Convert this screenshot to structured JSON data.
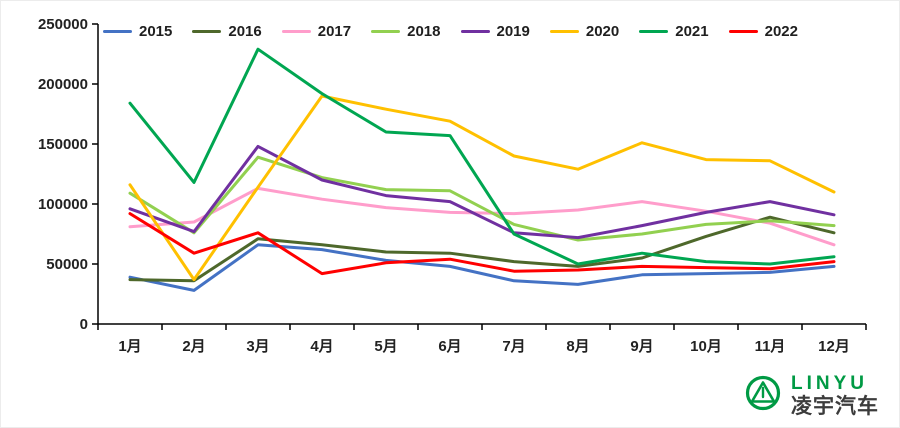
{
  "chart_data": {
    "type": "line",
    "title": "",
    "categories": [
      "1月",
      "2月",
      "3月",
      "4月",
      "5月",
      "6月",
      "7月",
      "8月",
      "9月",
      "10月",
      "11月",
      "12月"
    ],
    "y_tick_labels": [
      "0",
      "50000",
      "100000",
      "150000",
      "200000",
      "250000"
    ],
    "ylim": [
      0,
      250000
    ],
    "y_tick_interval": 50000,
    "grid": false,
    "legend_position": "top",
    "axis_color": "#000000",
    "series": [
      {
        "name": "2015",
        "color": "#4472C4",
        "values": [
          39000,
          28000,
          66000,
          62000,
          53000,
          48000,
          36000,
          33000,
          41000,
          42000,
          43000,
          48000
        ]
      },
      {
        "name": "2016",
        "color": "#4E682B",
        "values": [
          37000,
          36000,
          71000,
          66000,
          60000,
          59000,
          52000,
          48000,
          55000,
          73000,
          89000,
          76000
        ]
      },
      {
        "name": "2017",
        "color": "#FF9DCB",
        "values": [
          81000,
          85000,
          113000,
          104000,
          97000,
          93000,
          92000,
          95000,
          102000,
          94000,
          84000,
          66000
        ]
      },
      {
        "name": "2018",
        "color": "#92D050",
        "values": [
          109000,
          76000,
          139000,
          122000,
          112000,
          111000,
          83000,
          70000,
          75000,
          83000,
          86000,
          82000
        ]
      },
      {
        "name": "2019",
        "color": "#7030A0",
        "values": [
          96000,
          77000,
          148000,
          120000,
          107000,
          102000,
          76000,
          72000,
          82000,
          93000,
          102000,
          91000
        ]
      },
      {
        "name": "2020",
        "color": "#FFC000",
        "values": [
          116000,
          37000,
          114000,
          190000,
          179000,
          169000,
          140000,
          129000,
          151000,
          137000,
          136000,
          110000
        ]
      },
      {
        "name": "2021",
        "color": "#00A651",
        "values": [
          184000,
          118000,
          229000,
          192000,
          160000,
          157000,
          75000,
          50000,
          59000,
          52000,
          50000,
          56000
        ]
      },
      {
        "name": "2022",
        "color": "#FF0000",
        "values": [
          92000,
          59000,
          76000,
          42000,
          51000,
          54000,
          44000,
          45000,
          48000,
          47000,
          46000,
          52000
        ]
      }
    ]
  },
  "logo": {
    "brand_latin": "LINYU",
    "brand_cn": "凌宇汽车",
    "brand_color": "#009A44"
  }
}
